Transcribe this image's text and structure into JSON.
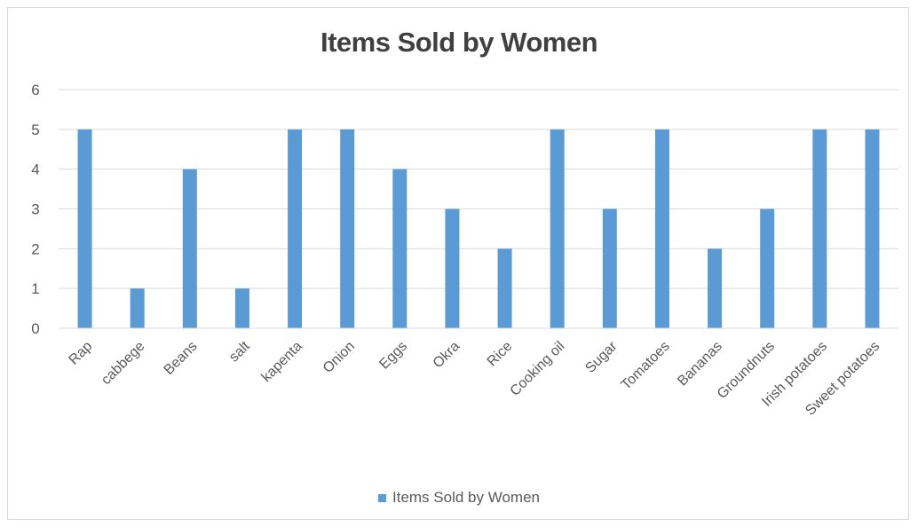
{
  "chart_data": {
    "type": "bar",
    "title": "Items Sold by Women",
    "xlabel": "",
    "ylabel": "",
    "categories": [
      "Rap",
      "cabbege",
      "Beans",
      "salt",
      "kapenta",
      "Onion",
      "Eggs",
      "Okra",
      "Rice",
      "Cooking oil",
      "Sugar",
      "Tomatoes",
      "Bananas",
      "Groundnuts",
      "Irish potatoes",
      "Sweet potatoes"
    ],
    "series": [
      {
        "name": "Items Sold by Women",
        "values": [
          5,
          1,
          4,
          1,
          5,
          5,
          4,
          3,
          2,
          5,
          3,
          5,
          2,
          3,
          5,
          5
        ],
        "color": "#5b9bd5"
      }
    ],
    "ylim": [
      0,
      6
    ],
    "yticks": [
      0,
      1,
      2,
      3,
      4,
      5,
      6
    ],
    "grid": true,
    "legend_position": "bottom"
  }
}
